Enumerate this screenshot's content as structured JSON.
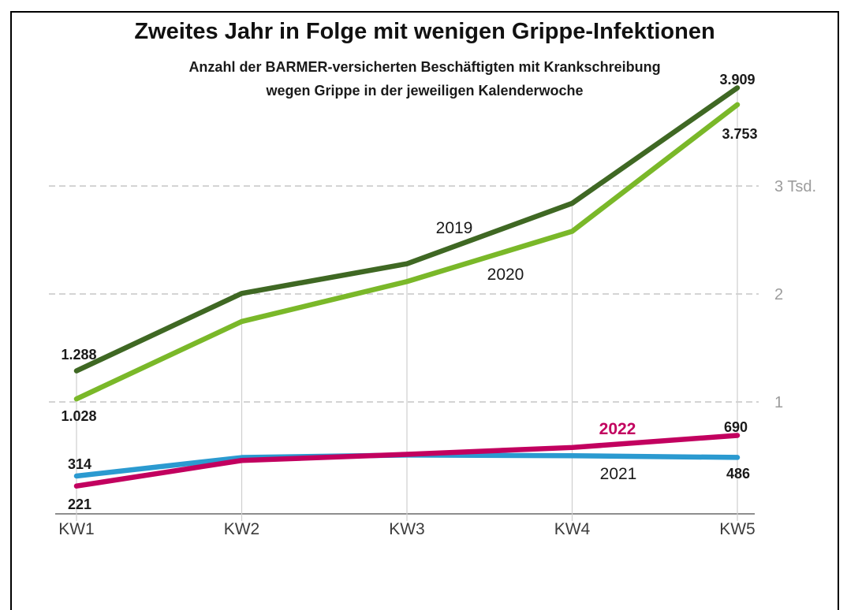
{
  "header": {
    "title": "Zweites Jahr in Folge mit wenigen Grippe-Infektionen",
    "subtitle_line1": "Anzahl der BARMER-versicherten Beschäftigten mit Krankschreibung",
    "subtitle_line2": "wegen Grippe in der jeweiligen Kalenderwoche"
  },
  "chart_data": {
    "type": "line",
    "categories": [
      "KW1",
      "KW2",
      "KW3",
      "KW4",
      "KW5"
    ],
    "series": [
      {
        "name": "2019",
        "color": "#3f6823",
        "values": [
          1288,
          2005,
          2280,
          2840,
          3909
        ],
        "first_value_label": "1.288",
        "last_value_label": "3.909"
      },
      {
        "name": "2020",
        "color": "#7ab829",
        "values": [
          1028,
          1745,
          2115,
          2580,
          3753
        ],
        "first_value_label": "1.028",
        "last_value_label": "3.753"
      },
      {
        "name": "2021",
        "color": "#2b9ad0",
        "values": [
          314,
          485,
          508,
          502,
          486
        ],
        "first_value_label": "314",
        "last_value_label": "486"
      },
      {
        "name": "2022",
        "color": "#c2005f",
        "values": [
          221,
          458,
          515,
          578,
          690
        ],
        "first_value_label": "221",
        "last_value_label": "690"
      }
    ],
    "gridlines": [
      {
        "value": 1000,
        "label": "1"
      },
      {
        "value": 2000,
        "label": "2"
      },
      {
        "value": 3000,
        "label": "3 Tsd."
      }
    ],
    "ylim": [
      0,
      4200
    ],
    "grid": "horizontal dashed value lines + vertical category lines",
    "legend_position": "inline-labels-next-to-lines"
  },
  "style": {
    "text": "#1a1a1a",
    "hgrid": "#c6c6c6",
    "vgrid": "#cfcfcf",
    "axis": "#4a4a4a",
    "tick_label": "#3c3c3c",
    "grid_label": "#9c9c9c"
  }
}
